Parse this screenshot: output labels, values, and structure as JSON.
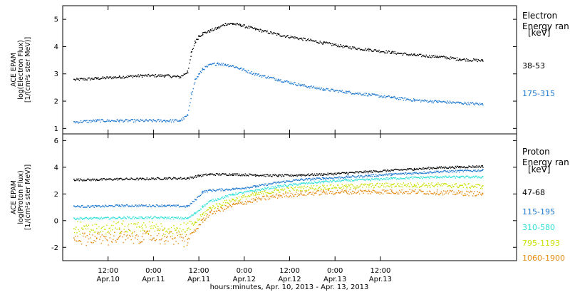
{
  "chart_data": [
    {
      "type": "scatter",
      "ylabel_lines": [
        "ACE EPAM",
        "log(Electron Flux)",
        "[1/(cm²s ster MeV)]"
      ],
      "ylim": [
        0.8,
        5.5
      ],
      "yticks": [
        1,
        2,
        3,
        4,
        5
      ],
      "legend_title": [
        "Electron",
        "Energy ran",
        "[keV]"
      ],
      "series": [
        {
          "name": "38-53",
          "color": "#000000",
          "x": [
            0,
            6,
            12,
            18,
            24,
            28,
            30,
            31,
            32,
            33,
            34,
            36,
            38,
            40,
            42,
            44,
            48,
            54,
            60,
            66,
            72,
            78,
            84,
            90,
            96,
            102,
            108
          ],
          "y": [
            2.8,
            2.85,
            2.9,
            2.95,
            2.95,
            2.9,
            3.1,
            3.8,
            4.2,
            4.4,
            4.5,
            4.6,
            4.7,
            4.85,
            4.85,
            4.8,
            4.65,
            4.45,
            4.3,
            4.15,
            4.0,
            3.9,
            3.8,
            3.7,
            3.65,
            3.55,
            3.5
          ]
        },
        {
          "name": "175-315",
          "color": "#1f78d0",
          "x": [
            0,
            6,
            12,
            18,
            24,
            28,
            30,
            31,
            32,
            33,
            34,
            36,
            38,
            40,
            42,
            44,
            48,
            54,
            60,
            66,
            72,
            78,
            84,
            90,
            96,
            102,
            108
          ],
          "y": [
            1.25,
            1.3,
            1.3,
            1.3,
            1.3,
            1.3,
            1.5,
            2.3,
            2.8,
            3.0,
            3.2,
            3.35,
            3.4,
            3.35,
            3.3,
            3.2,
            3.0,
            2.8,
            2.6,
            2.45,
            2.35,
            2.25,
            2.15,
            2.05,
            2.0,
            1.95,
            1.9
          ]
        }
      ]
    },
    {
      "type": "scatter",
      "ylabel_lines": [
        "ACE EPAM",
        "log(Proton Flux)",
        "[1/(cm²s ster MeV)]"
      ],
      "ylim": [
        -3,
        6.5
      ],
      "yticks": [
        -2,
        0,
        2,
        4,
        6
      ],
      "legend_title": [
        "Proton",
        "Energy ran",
        "[keV]"
      ],
      "series": [
        {
          "name": "47-68",
          "color": "#000000",
          "x": [
            0,
            6,
            12,
            18,
            24,
            30,
            33,
            36,
            42,
            48,
            54,
            60,
            66,
            72,
            78,
            84,
            90,
            96,
            102,
            108
          ],
          "y": [
            3.1,
            3.1,
            3.15,
            3.15,
            3.2,
            3.2,
            3.4,
            3.5,
            3.5,
            3.45,
            3.4,
            3.45,
            3.5,
            3.6,
            3.7,
            3.8,
            3.9,
            4.0,
            4.05,
            4.1
          ]
        },
        {
          "name": "115-195",
          "color": "#1f78d0",
          "x": [
            0,
            6,
            12,
            18,
            24,
            30,
            32,
            34,
            36,
            42,
            48,
            54,
            60,
            66,
            72,
            78,
            84,
            90,
            96,
            102,
            108
          ],
          "y": [
            1.1,
            1.1,
            1.15,
            1.15,
            1.15,
            1.1,
            1.6,
            2.2,
            2.3,
            2.4,
            2.6,
            2.9,
            3.1,
            3.2,
            3.3,
            3.4,
            3.5,
            3.6,
            3.7,
            3.75,
            3.8
          ]
        },
        {
          "name": "310-580",
          "color": "#2ee0d8",
          "x": [
            0,
            6,
            12,
            18,
            24,
            30,
            32,
            34,
            36,
            42,
            48,
            54,
            60,
            66,
            72,
            78,
            84,
            90,
            96,
            102,
            108
          ],
          "y": [
            0.2,
            0.2,
            0.25,
            0.25,
            0.25,
            0.2,
            0.6,
            1.1,
            1.5,
            2.0,
            2.3,
            2.6,
            2.8,
            2.95,
            3.05,
            3.1,
            3.2,
            3.25,
            3.3,
            3.3,
            3.3
          ]
        },
        {
          "name": "795-1193",
          "color": "#c8e000",
          "x": [
            0,
            6,
            12,
            18,
            24,
            30,
            32,
            34,
            36,
            42,
            48,
            54,
            60,
            66,
            72,
            78,
            84,
            90,
            96,
            102,
            108
          ],
          "y": [
            -0.6,
            -0.6,
            -0.55,
            -0.55,
            -0.55,
            -0.6,
            -0.1,
            0.5,
            1.0,
            1.6,
            2.0,
            2.3,
            2.45,
            2.55,
            2.6,
            2.65,
            2.7,
            2.7,
            2.7,
            2.65,
            2.6
          ]
        },
        {
          "name": "1060-1900",
          "color": "#e58a10",
          "x": [
            0,
            6,
            12,
            18,
            24,
            30,
            32,
            34,
            36,
            42,
            48,
            54,
            60,
            66,
            72,
            78,
            84,
            90,
            96,
            102,
            108
          ],
          "y": [
            -1.3,
            -1.3,
            -1.2,
            -1.2,
            -1.2,
            -1.4,
            -0.7,
            0.1,
            0.6,
            1.2,
            1.6,
            1.9,
            2.05,
            2.15,
            2.2,
            2.2,
            2.2,
            2.2,
            2.15,
            2.1,
            2.05
          ]
        }
      ]
    }
  ],
  "x_axis": {
    "xlim": [
      -3,
      117
    ],
    "ticks": [
      {
        "x": 9,
        "time": "12:00",
        "date": "Apr.10"
      },
      {
        "x": 21,
        "time": "0:00",
        "date": "Apr.11"
      },
      {
        "x": 33,
        "time": "12:00",
        "date": "Apr.11"
      },
      {
        "x": 45,
        "time": "0:00",
        "date": "Apr.12"
      },
      {
        "x": 57,
        "time": "12:00",
        "date": "Apr.12"
      },
      {
        "x": 69,
        "time": "0:00",
        "date": "Apr.13"
      },
      {
        "x": 81,
        "time": "12:00",
        "date": "Apr.13"
      }
    ],
    "label": "hours:minutes, Apr. 10, 2013 - Apr. 13, 2013"
  }
}
